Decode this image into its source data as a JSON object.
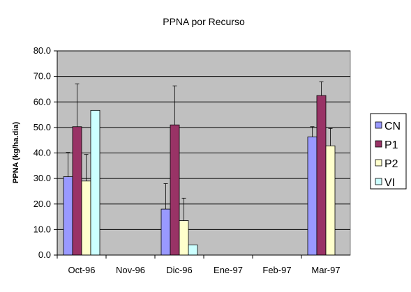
{
  "chart_data": {
    "type": "bar",
    "title": "PPNA por Recurso",
    "ylabel": "PPNA (kg/ha.dia)",
    "xlabel": "",
    "ylim": [
      0,
      80
    ],
    "yticks": [
      "0.0",
      "10.0",
      "20.0",
      "30.0",
      "40.0",
      "50.0",
      "60.0",
      "70.0",
      "80.0"
    ],
    "ytick_values": [
      0,
      10,
      20,
      30,
      40,
      50,
      60,
      70,
      80
    ],
    "grid": true,
    "legend_position": "right",
    "categories": [
      "Oct-96",
      "Nov-96",
      "Dic-96",
      "Ene-97",
      "Feb-97",
      "Mar-97"
    ],
    "series": [
      {
        "name": "CN",
        "color": "#9999ff",
        "values": [
          30.7,
          null,
          18.0,
          null,
          null,
          46.3
        ],
        "error": [
          9.5,
          null,
          10.0,
          null,
          null,
          4.0
        ]
      },
      {
        "name": "P1",
        "color": "#993366",
        "values": [
          50.3,
          null,
          51.0,
          null,
          null,
          62.5
        ],
        "error": [
          16.8,
          null,
          15.3,
          null,
          null,
          5.4
        ]
      },
      {
        "name": "P2",
        "color": "#ffffcc",
        "values": [
          29.0,
          null,
          13.5,
          null,
          null,
          42.8
        ],
        "error": [
          10.4,
          null,
          8.8,
          null,
          null,
          6.8
        ]
      },
      {
        "name": "VI",
        "color": "#ccffff",
        "values": [
          56.7,
          null,
          4.0,
          null,
          null,
          null
        ],
        "error": [
          null,
          null,
          null,
          null,
          null,
          null
        ]
      }
    ],
    "colors": {
      "plot_background": "#c0c0c0",
      "gridline": "#000000",
      "bar_outline": "#000000"
    }
  }
}
